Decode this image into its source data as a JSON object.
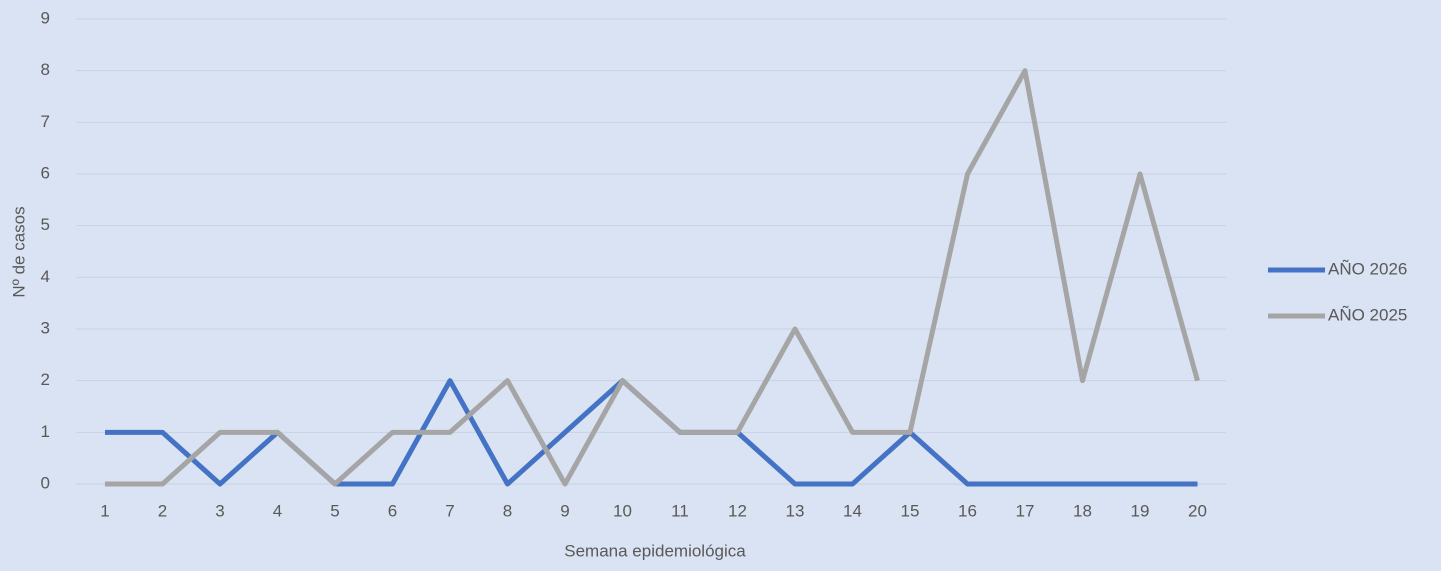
{
  "chart_data": {
    "type": "line",
    "x_label": "Semana epidemiológica",
    "y_label": "Nº de casos",
    "categories": [
      "1",
      "2",
      "3",
      "4",
      "5",
      "6",
      "7",
      "8",
      "9",
      "10",
      "11",
      "12",
      "13",
      "14",
      "15",
      "16",
      "17",
      "18",
      "19",
      "20"
    ],
    "series": [
      {
        "name": "AÑO 2026",
        "color": "#4472c4",
        "values": [
          1,
          1,
          0,
          1,
          0,
          0,
          2,
          0,
          1,
          2,
          1,
          1,
          0,
          0,
          1,
          0,
          0,
          0,
          0,
          0
        ]
      },
      {
        "name": "AÑO 2025",
        "color": "#a5a5a5",
        "values": [
          0,
          0,
          1,
          1,
          0,
          1,
          1,
          2,
          0,
          2,
          1,
          1,
          3,
          1,
          1,
          6,
          8,
          2,
          6,
          2
        ]
      }
    ],
    "ylim": [
      0,
      9
    ],
    "yticks": [
      0,
      1,
      2,
      3,
      4,
      5,
      6,
      7,
      8,
      9
    ],
    "grid": true,
    "legend": "right"
  }
}
